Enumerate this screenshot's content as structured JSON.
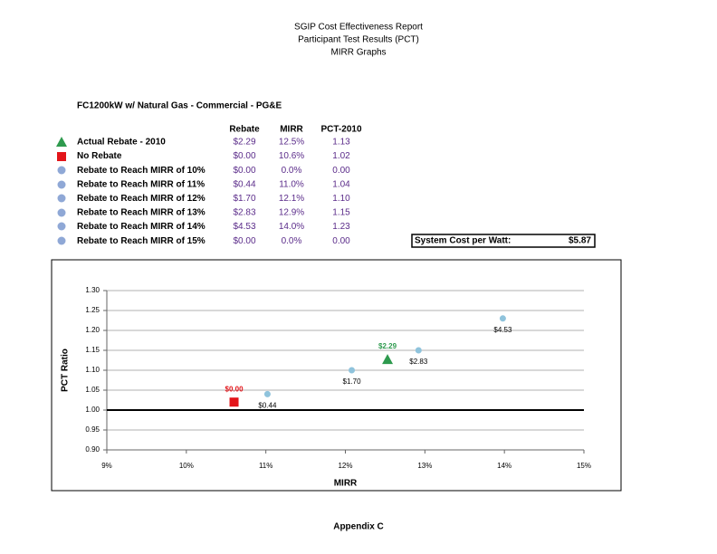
{
  "header": {
    "lines": [
      "SGIP Cost Effectiveness Report",
      "Participant Test Results (PCT)",
      "MIRR Graphs"
    ]
  },
  "subtitle": "FC1200kW w/ Natural Gas - Commercial - PG&E",
  "table": {
    "columns": [
      "Rebate",
      "MIRR",
      "PCT-2010"
    ],
    "rows": [
      [
        "Actual Rebate - 2010",
        "$2.29",
        "12.5%",
        "1.13"
      ],
      [
        "No Rebate",
        "$0.00",
        "10.6%",
        "1.02"
      ],
      [
        "Rebate to Reach MIRR of 10%",
        "$0.00",
        "0.0%",
        "0.00"
      ],
      [
        "Rebate to Reach MIRR of 11%",
        "$0.44",
        "11.0%",
        "1.04"
      ],
      [
        "Rebate to Reach MIRR of 12%",
        "$1.70",
        "12.1%",
        "1.10"
      ],
      [
        "Rebate to Reach MIRR of 13%",
        "$2.83",
        "12.9%",
        "1.15"
      ],
      [
        "Rebate to Reach MIRR of 14%",
        "$4.53",
        "14.0%",
        "1.23"
      ],
      [
        "Rebate to Reach MIRR of 15%",
        "$0.00",
        "0.0%",
        "0.00"
      ]
    ]
  },
  "cost_box": {
    "label": "System Cost per Watt:",
    "value": "$5.87"
  },
  "chart_data": {
    "type": "scatter",
    "x_label": "MIRR",
    "y_label": "PCT Ratio",
    "xlim": [
      9,
      15
    ],
    "xticks": [
      {
        "value": 9,
        "label": "9%"
      },
      {
        "value": 10,
        "label": "10%"
      },
      {
        "value": 11,
        "label": "11%"
      },
      {
        "value": 12,
        "label": "12%"
      },
      {
        "value": 13,
        "label": "13%"
      },
      {
        "value": 14,
        "label": "14%"
      },
      {
        "value": 15,
        "label": "15%"
      }
    ],
    "ylim": [
      0.9,
      1.3
    ],
    "yticks": [
      {
        "value": 0.9,
        "label": "0.90"
      },
      {
        "value": 0.95,
        "label": "0.95"
      },
      {
        "value": 1,
        "label": "1.00"
      },
      {
        "value": 1.05,
        "label": "1.05"
      },
      {
        "value": 1.1,
        "label": "1.10"
      },
      {
        "value": 1.15,
        "label": "1.15"
      },
      {
        "value": 1.2,
        "label": "1.20"
      },
      {
        "value": 1.25,
        "label": "1.25"
      },
      {
        "value": 1.3,
        "label": "1.30"
      }
    ],
    "grid": true,
    "reference_line": 1,
    "series": [
      {
        "marker": "triangle",
        "color": "#2e9a4e",
        "label_color": "#2e9a4e",
        "label_position": "above",
        "x": [
          12.53
        ],
        "y": [
          1.127
        ],
        "point_labels": [
          "$2.29"
        ]
      },
      {
        "marker": "square",
        "color": "#e3151a",
        "label_color": "#e3151a",
        "label_position": "above",
        "x": [
          10.6
        ],
        "y": [
          1.02
        ],
        "point_labels": [
          "$0.00"
        ]
      },
      {
        "marker": "circle",
        "color": "#8fc3dc",
        "label_color": "#000000",
        "label_position": "below",
        "x": [
          11.02,
          12.08,
          12.92,
          13.98
        ],
        "y": [
          1.04,
          1.1,
          1.15,
          1.23
        ],
        "point_labels": [
          "$0.44",
          "$1.70",
          "$2.83",
          "$4.53"
        ]
      }
    ]
  },
  "footer": "Appendix C"
}
